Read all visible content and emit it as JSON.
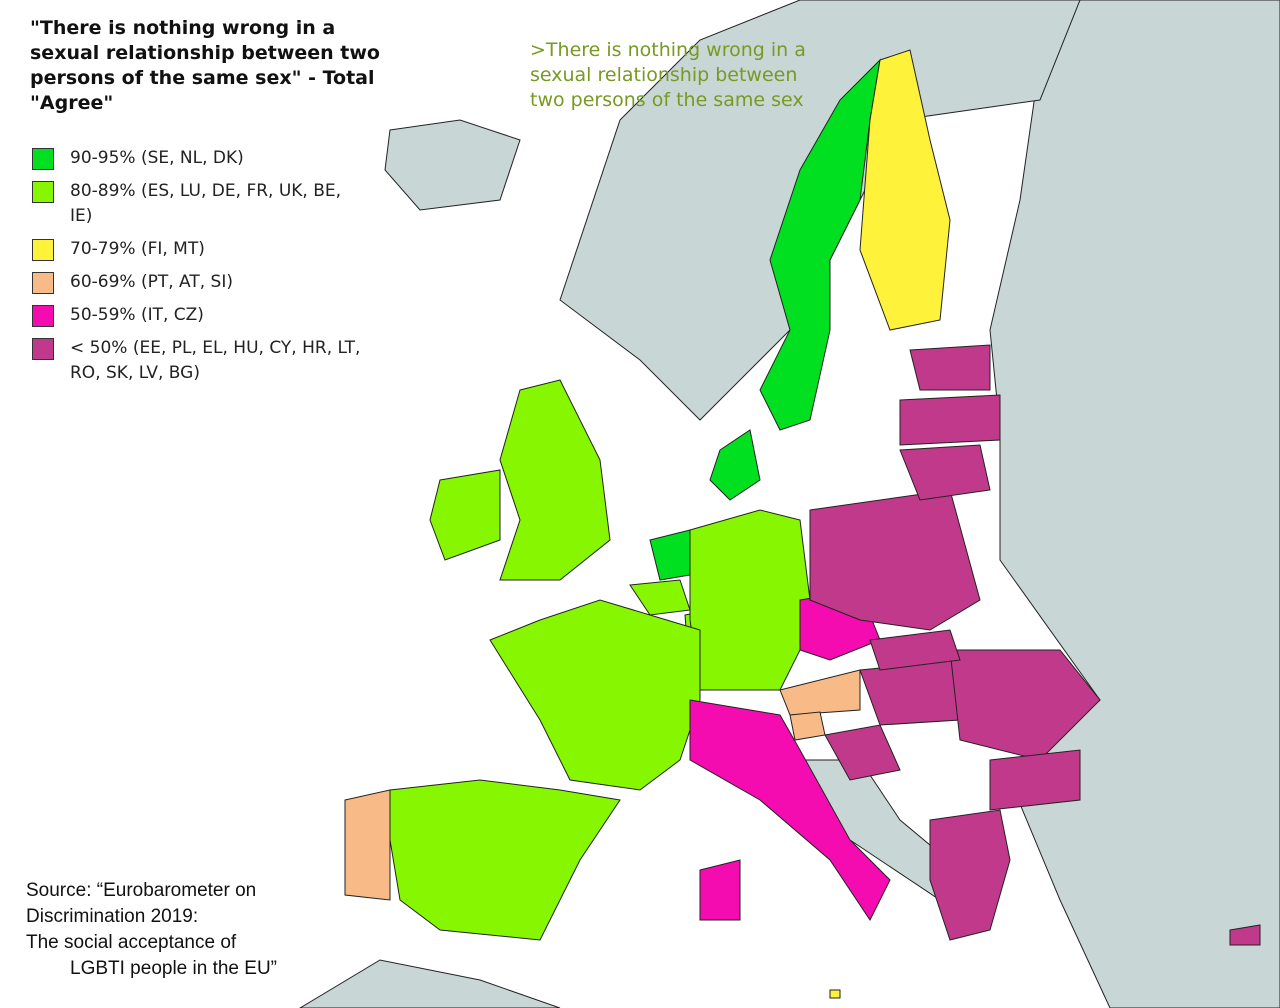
{
  "title": "\"There is nothing wrong in a sexual relationship between two persons of the same sex\" - Total \"Agree\"",
  "quote": ">There is nothing wrong in a sexual relationship between two persons of the same sex",
  "legend": [
    {
      "label": "90-95% (SE, NL, DK)",
      "color": "#00e020"
    },
    {
      "label": "80-89% (ES, LU, DE, FR, UK, BE, IE)",
      "color": "#86f700"
    },
    {
      "label": "70-79% (FI, MT)",
      "color": "#fff23a"
    },
    {
      "label": "60-69% (PT, AT, SI)",
      "color": "#f8ba86"
    },
    {
      "label": "50-59% (IT, CZ)",
      "color": "#f50cb0"
    },
    {
      "label": "< 50% (EE, PL, EL, HU, CY, HR, LT, RO, SK, LV, BG)",
      "color": "#c0398a"
    }
  ],
  "source": {
    "line1": "Source: “Eurobarometer on Discrimination 2019:",
    "line2": "The social acceptance of",
    "line3": "LGBTI people in the EU”"
  },
  "colors": {
    "sea": "#ffffff",
    "non_eu_land": "#c9d6d6",
    "border": "#222222"
  },
  "countries": {
    "SE": 0,
    "NL": 0,
    "DK": 0,
    "ES": 1,
    "LU": 1,
    "DE": 1,
    "FR": 1,
    "UK": 1,
    "BE": 1,
    "IE": 1,
    "FI": 2,
    "MT": 2,
    "PT": 3,
    "AT": 3,
    "SI": 3,
    "IT": 4,
    "CZ": 4,
    "EE": 5,
    "PL": 5,
    "EL": 5,
    "HU": 5,
    "CY": 5,
    "HR": 5,
    "LT": 5,
    "RO": 5,
    "SK": 5,
    "LV": 5,
    "BG": 5
  }
}
